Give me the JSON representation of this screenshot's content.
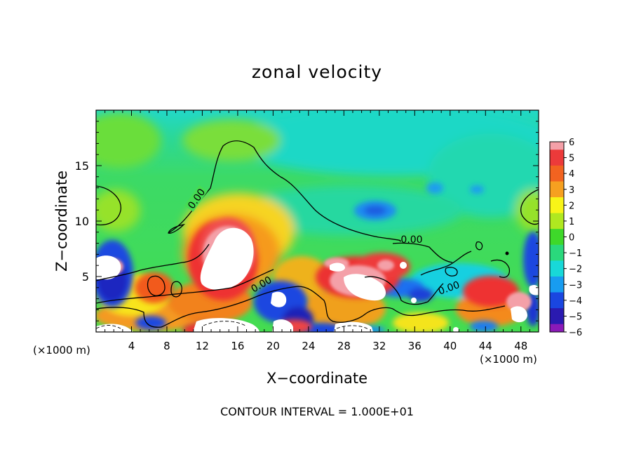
{
  "chart_data": {
    "type": "heatmap",
    "title": "zonal velocity",
    "xlabel": "X−coordinate",
    "ylabel": "Z−coordinate",
    "x_unit_label_left": "(×1000 m)",
    "x_unit_label_right": "(×1000 m)",
    "xlim": [
      0,
      50
    ],
    "ylim": [
      0,
      20
    ],
    "x_ticks": [
      4,
      8,
      12,
      16,
      20,
      24,
      28,
      32,
      36,
      40,
      44,
      48
    ],
    "y_ticks": [
      5,
      10,
      15
    ],
    "colorbar": {
      "ticks": [
        6,
        5,
        4,
        3,
        2,
        1,
        0,
        -1,
        -2,
        -3,
        -4,
        -5,
        -6
      ],
      "tick_labels": [
        "6",
        "5",
        "4",
        "3",
        "2",
        "1",
        "0",
        "−1",
        "−2",
        "−3",
        "−4",
        "−5",
        "−6"
      ],
      "colors": [
        "#f4a0a8",
        "#ec3a3a",
        "#f26320",
        "#f6a020",
        "#f8f418",
        "#b0e820",
        "#3ed82a",
        "#2ad87c",
        "#18d8d8",
        "#189cf0",
        "#1a46e0",
        "#2a1ab0",
        "#8a1ab8"
      ]
    },
    "contour_labels": [
      "0.00",
      "0.00",
      "0.00",
      "0.00"
    ],
    "contour_interval_text": "CONTOUR INTERVAL = 1.000E+01",
    "grid": false,
    "legend": "colorbar-right"
  },
  "palette": {
    "background": "#ffffff",
    "field_base": "#46dc52",
    "cyan": "#20dcc0",
    "blue": "#1a6cf0",
    "deep_blue": "#1a2ac8",
    "red": "#ec3030",
    "orange": "#f6901c",
    "yellow": "#f4e41c",
    "pink": "#f4a0a8"
  }
}
